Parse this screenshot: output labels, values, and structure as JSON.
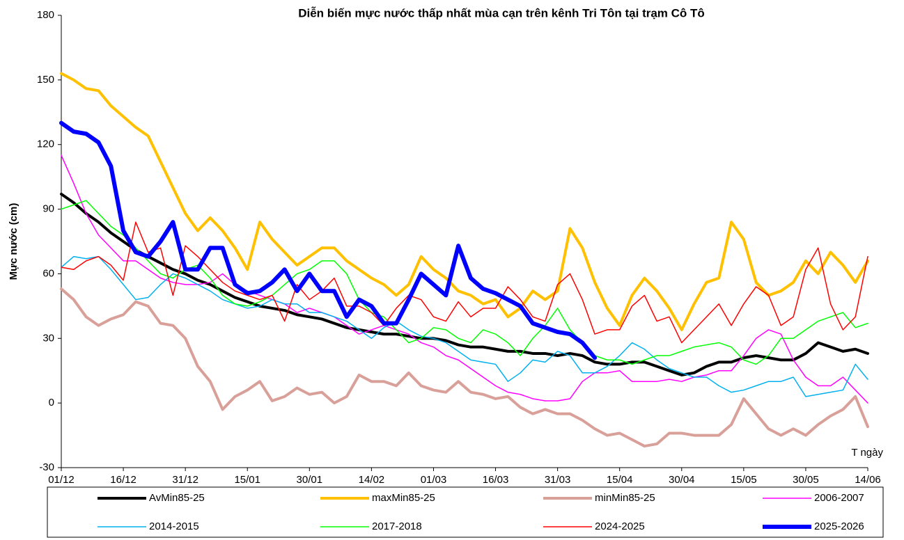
{
  "chart_data": {
    "type": "line",
    "title": "Diễn biến mực nước thấp nhất mùa cạn trên kênh Tri Tôn tại trạm Cô Tô",
    "y_label": "Mực nước (cm)",
    "x_annotation": "T ngày",
    "x": [
      0,
      3,
      6,
      9,
      12,
      15,
      18,
      21,
      24,
      27,
      30,
      33,
      36,
      39,
      42,
      45,
      48,
      51,
      54,
      57,
      60,
      63,
      66,
      69,
      72,
      75,
      78,
      81,
      84,
      87,
      90,
      93,
      96,
      99,
      102,
      105,
      108,
      111,
      114,
      117,
      120,
      123,
      126,
      129,
      132,
      135,
      138,
      141,
      144,
      147,
      150,
      153,
      156,
      159,
      162,
      165,
      168,
      171,
      174,
      177,
      180,
      183,
      186,
      189,
      192,
      195
    ],
    "xlim": [
      0,
      195
    ],
    "xticks": [
      {
        "value": 0,
        "label": "01/12"
      },
      {
        "value": 15,
        "label": "16/12"
      },
      {
        "value": 30,
        "label": "31/12"
      },
      {
        "value": 45,
        "label": "15/01"
      },
      {
        "value": 60,
        "label": "30/01"
      },
      {
        "value": 75,
        "label": "14/02"
      },
      {
        "value": 90,
        "label": "01/03"
      },
      {
        "value": 105,
        "label": "16/03"
      },
      {
        "value": 120,
        "label": "31/03"
      },
      {
        "value": 135,
        "label": "15/04"
      },
      {
        "value": 150,
        "label": "30/04"
      },
      {
        "value": 165,
        "label": "15/05"
      },
      {
        "value": 180,
        "label": "30/05"
      },
      {
        "value": 195,
        "label": "14/06"
      }
    ],
    "ylim": [
      -30,
      180
    ],
    "yticks": [
      -30,
      0,
      30,
      60,
      90,
      120,
      150,
      180
    ],
    "series": [
      {
        "name": "AvMin85-25",
        "color": "#000000",
        "line_width": 4,
        "values": [
          97,
          93,
          88,
          84,
          79,
          75,
          71,
          68,
          65,
          62,
          60,
          57,
          55,
          52,
          49,
          47,
          45,
          44,
          43,
          41,
          40,
          39,
          37,
          35,
          34,
          33,
          32,
          32,
          31,
          30,
          30,
          29,
          27,
          26,
          26,
          25,
          24,
          24,
          23,
          23,
          22,
          23,
          22,
          19,
          18,
          18,
          19,
          19,
          17,
          15,
          13,
          14,
          17,
          19,
          19,
          21,
          22,
          21,
          20,
          20,
          23,
          28,
          26,
          24,
          25,
          23
        ]
      },
      {
        "name": "maxMin85-25",
        "color": "#ffc000",
        "line_width": 4,
        "values": [
          153,
          150,
          146,
          145,
          138,
          133,
          128,
          124,
          112,
          100,
          88,
          80,
          86,
          80,
          72,
          62,
          84,
          76,
          70,
          64,
          68,
          72,
          72,
          66,
          62,
          58,
          55,
          50,
          55,
          68,
          62,
          58,
          52,
          50,
          46,
          48,
          40,
          44,
          52,
          48,
          52,
          81,
          72,
          56,
          44,
          36,
          50,
          58,
          52,
          44,
          34,
          46,
          56,
          58,
          84,
          76,
          56,
          50,
          52,
          56,
          66,
          60,
          70,
          64,
          56,
          66
        ]
      },
      {
        "name": "minMin85-25",
        "color": "#d9a09a",
        "line_width": 4,
        "values": [
          53,
          48,
          40,
          36,
          39,
          41,
          47,
          45,
          37,
          36,
          30,
          17,
          10,
          -3,
          3,
          6,
          10,
          1,
          3,
          7,
          4,
          5,
          0,
          3,
          13,
          10,
          10,
          8,
          14,
          8,
          6,
          5,
          10,
          5,
          4,
          2,
          3,
          -2,
          -5,
          -3,
          -5,
          -5,
          -8,
          -12,
          -15,
          -14,
          -17,
          -20,
          -19,
          -14,
          -14,
          -15,
          -15,
          -15,
          -10,
          2,
          -5,
          -12,
          -15,
          -12,
          -15,
          -10,
          -6,
          -3,
          3,
          -11
        ]
      },
      {
        "name": "2006-2007",
        "color": "#ff00ff",
        "line_width": 1.5,
        "values": [
          115,
          102,
          88,
          78,
          72,
          66,
          66,
          62,
          58,
          56,
          55,
          55,
          56,
          60,
          55,
          52,
          50,
          48,
          46,
          42,
          44,
          42,
          40,
          36,
          32,
          34,
          36,
          34,
          32,
          28,
          26,
          22,
          20,
          16,
          12,
          8,
          5,
          4,
          2,
          1,
          1,
          2,
          10,
          14,
          14,
          15,
          10,
          10,
          10,
          11,
          10,
          12,
          13,
          15,
          15,
          22,
          30,
          34,
          32,
          20,
          12,
          8,
          8,
          12,
          6,
          0
        ]
      },
      {
        "name": "2014-2015",
        "color": "#00b0f0",
        "line_width": 1.5,
        "values": [
          63,
          68,
          67,
          68,
          62,
          55,
          48,
          49,
          55,
          60,
          58,
          55,
          52,
          48,
          46,
          44,
          45,
          48,
          46,
          46,
          42,
          42,
          40,
          38,
          34,
          30,
          35,
          38,
          34,
          31,
          30,
          28,
          24,
          20,
          19,
          18,
          10,
          14,
          20,
          19,
          24,
          22,
          14,
          14,
          17,
          22,
          28,
          25,
          20,
          16,
          14,
          12,
          12,
          8,
          5,
          6,
          8,
          10,
          10,
          12,
          3,
          4,
          5,
          6,
          18,
          11
        ]
      },
      {
        "name": "2017-2018",
        "color": "#00ff00",
        "line_width": 1.5,
        "values": [
          90,
          92,
          94,
          88,
          82,
          78,
          72,
          66,
          60,
          58,
          62,
          64,
          58,
          50,
          46,
          45,
          47,
          50,
          55,
          60,
          62,
          66,
          66,
          60,
          48,
          42,
          40,
          34,
          28,
          30,
          35,
          34,
          30,
          28,
          34,
          32,
          28,
          22,
          30,
          36,
          44,
          34,
          28,
          22,
          20,
          20,
          18,
          20,
          22,
          22,
          24,
          26,
          27,
          28,
          26,
          20,
          18,
          22,
          30,
          30,
          34,
          38,
          40,
          42,
          35,
          37
        ]
      },
      {
        "name": "2024-2025",
        "color": "#ff0000",
        "line_width": 1.5,
        "values": [
          63,
          62,
          66,
          68,
          64,
          57,
          84,
          70,
          72,
          50,
          73,
          68,
          62,
          56,
          52,
          50,
          48,
          50,
          38,
          55,
          48,
          52,
          58,
          45,
          45,
          42,
          36,
          44,
          50,
          48,
          40,
          38,
          47,
          40,
          44,
          44,
          54,
          48,
          40,
          38,
          55,
          60,
          48,
          32,
          34,
          34,
          45,
          50,
          38,
          40,
          28,
          34,
          40,
          46,
          36,
          46,
          54,
          50,
          36,
          40,
          62,
          72,
          46,
          34,
          40,
          68
        ]
      },
      {
        "name": "2025-2026",
        "color": "#0000ff",
        "line_width": 6,
        "values": [
          130,
          126,
          125,
          121,
          110,
          80,
          70,
          68,
          75,
          84,
          62,
          62,
          72,
          72,
          55,
          51,
          52,
          56,
          62,
          52,
          60,
          52,
          52,
          40,
          48,
          45,
          37,
          37,
          48,
          60,
          55,
          50,
          73,
          58,
          53,
          51,
          48,
          45,
          37,
          35,
          33,
          32,
          28,
          21,
          null,
          null,
          null,
          null,
          null,
          null,
          null,
          null,
          null,
          null,
          null,
          null,
          null,
          null,
          null,
          null,
          null,
          null,
          null,
          null,
          null,
          null
        ]
      }
    ]
  }
}
